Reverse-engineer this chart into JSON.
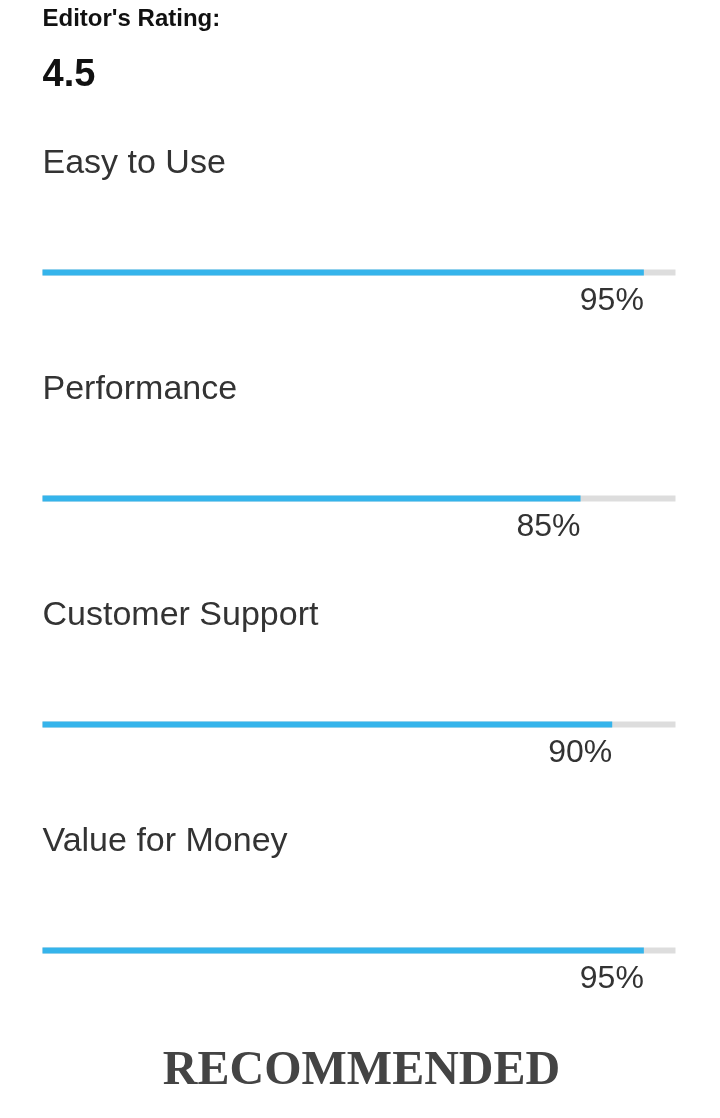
{
  "chart_data": {
    "type": "bar",
    "orientation": "horizontal",
    "title": "Editor's Rating:",
    "categories": [
      "Easy to Use",
      "Performance",
      "Customer Support",
      "Value for Money"
    ],
    "values": [
      95,
      85,
      90,
      95
    ],
    "value_labels": [
      "95%",
      "85%",
      "90%",
      "95%"
    ],
    "color": "#35b4eb",
    "xlim": [
      0,
      100
    ],
    "grid": false,
    "annotations": [
      "4.5",
      "RECOMMENDED"
    ]
  }
}
